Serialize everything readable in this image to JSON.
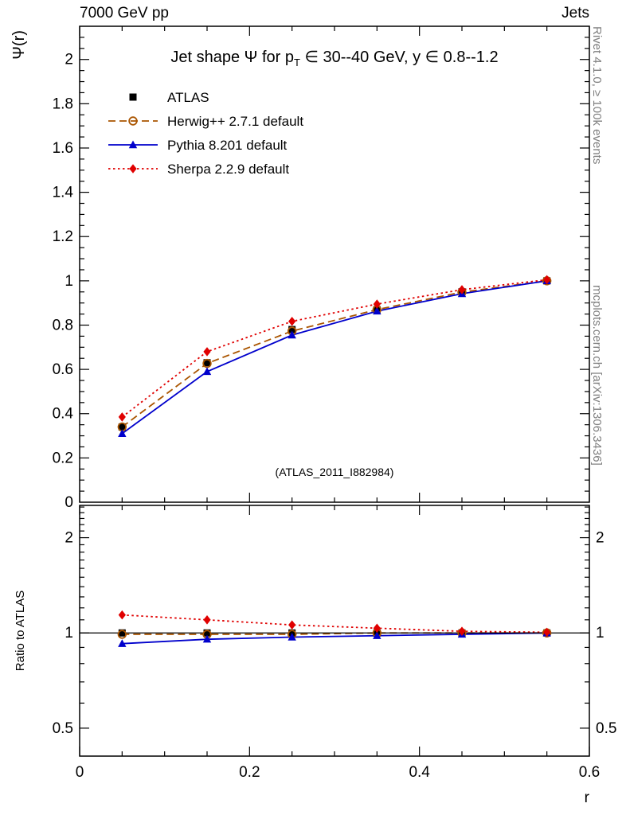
{
  "header": {
    "left": "7000 GeV pp",
    "right": "Jets"
  },
  "side_notes": {
    "top_right": "Rivet 4.1.0, ≥ 100k events",
    "bottom_right": "mcplots.cern.ch [arXiv:1306.3436]"
  },
  "watermark": "(ATLAS_2011_I882984)",
  "chart_data": {
    "type": "line",
    "title": "Jet shape Ψ for p_T ∈ 30--40 GeV, y ∈ 0.8--1.2",
    "title_parts": [
      "Jet shape Ψ for p",
      "T",
      " ∈ 30--40 GeV, y ∈ 0.8--1.2"
    ],
    "xlabel": "r",
    "ylabel_main": "Ψ(r)",
    "ylabel_ratio": "Ratio to ATLAS",
    "xlim": [
      0,
      0.6
    ],
    "ylim_main": [
      0,
      2.15
    ],
    "ylim_ratio": [
      0.408,
      2.53
    ],
    "ratio_axis_scale": "log",
    "grid": false,
    "legend_position": "top-left",
    "x": [
      0.05,
      0.15,
      0.25,
      0.35,
      0.45,
      0.55
    ],
    "xticks": [
      0,
      0.2,
      0.4,
      0.6
    ],
    "yticks_main": [
      0,
      0.2,
      0.4,
      0.6,
      0.8,
      1,
      1.2,
      1.4,
      1.6,
      1.8,
      2
    ],
    "yticks_ratio": [
      0.5,
      1,
      2
    ],
    "series": [
      {
        "name": "ATLAS",
        "color": "#000000",
        "marker": "square",
        "line": "none",
        "values": [
          0.34,
          0.63,
          0.78,
          0.87,
          0.95,
          1.0
        ],
        "ratio": [
          1,
          1,
          1,
          1,
          1,
          1
        ]
      },
      {
        "name": "Herwig++ 2.7.1 default",
        "color": "#aa5500",
        "marker": "circle-open",
        "line": "dashed",
        "values": [
          0.34,
          0.627,
          0.773,
          0.87,
          0.949,
          1.0
        ],
        "ratio": [
          0.99,
          0.99,
          0.99,
          1.0,
          1.0,
          1.0
        ]
      },
      {
        "name": "Pythia 8.201 default",
        "color": "#0000cc",
        "marker": "triangle",
        "line": "solid",
        "values": [
          0.31,
          0.59,
          0.755,
          0.863,
          0.942,
          1.0
        ],
        "ratio": [
          0.925,
          0.955,
          0.97,
          0.98,
          0.99,
          1.0
        ]
      },
      {
        "name": "Sherpa 2.2.9 default",
        "color": "#e00000",
        "marker": "diamond",
        "line": "dotted",
        "values": [
          0.385,
          0.68,
          0.817,
          0.895,
          0.96,
          1.005
        ],
        "ratio": [
          1.14,
          1.1,
          1.06,
          1.035,
          1.012,
          1.005
        ]
      }
    ]
  }
}
